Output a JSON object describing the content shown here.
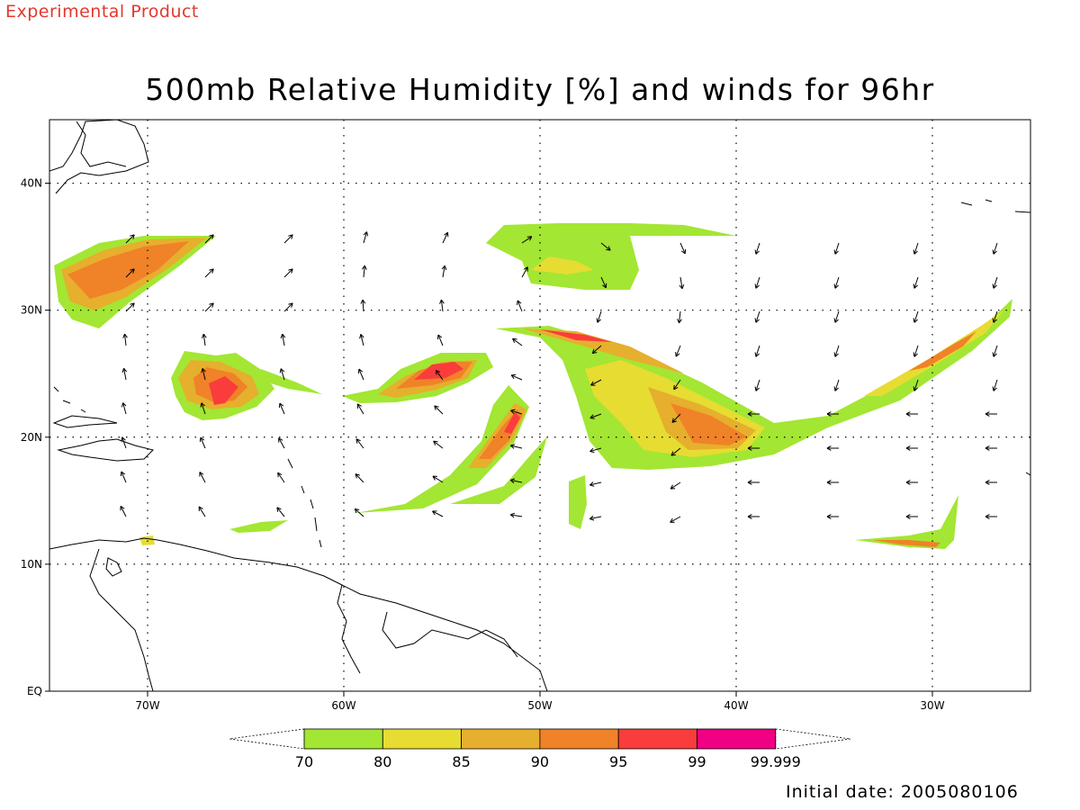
{
  "header": {
    "banner": "Experimental Product"
  },
  "map": {
    "title": "500mb Relative Humidity [%] and winds for 96hr",
    "lon_range": [
      -75,
      -25
    ],
    "lat_range": [
      0,
      45
    ],
    "lon_ticks": [
      "70W",
      "60W",
      "50W",
      "40W",
      "30W"
    ],
    "lat_ticks": [
      "EQ",
      "10N",
      "20N",
      "30N",
      "40N"
    ],
    "grid": "dotted"
  },
  "colorbar": {
    "labels": [
      "70",
      "80",
      "85",
      "90",
      "95",
      "99",
      "99.999"
    ],
    "colors": [
      "#a3e633",
      "#e6dc32",
      "#e6af2d",
      "#f08228",
      "#fa3c3c",
      "#f00082"
    ]
  },
  "footer": {
    "initial_date": "Initial date: 2005080106"
  }
}
